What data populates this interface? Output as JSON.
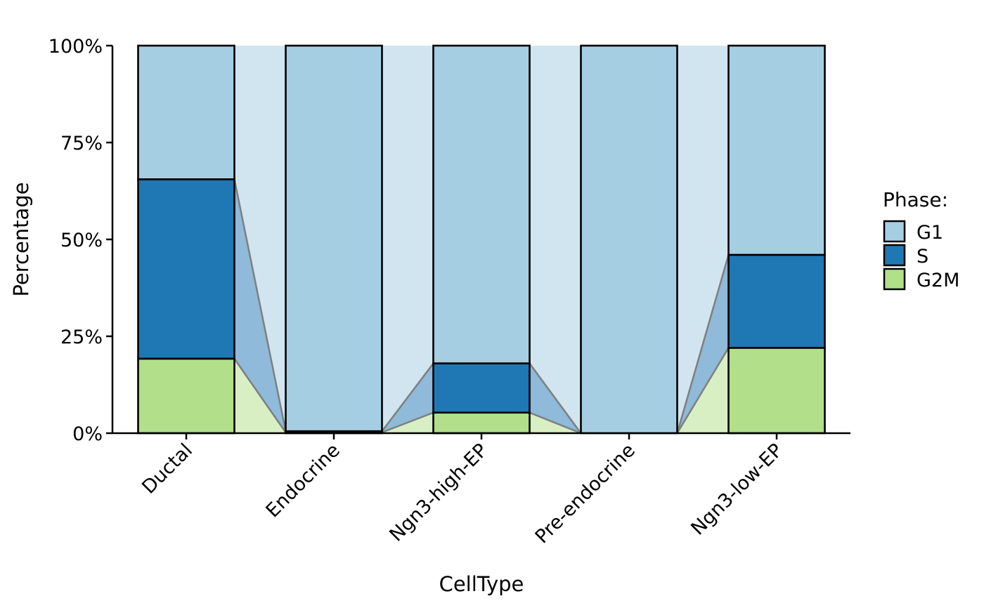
{
  "chart_data": {
    "type": "bar",
    "stacked": true,
    "normalized": true,
    "connectors": true,
    "categories": [
      "Ductal",
      "Endocrine",
      "Ngn3-high-EP",
      "Pre-endocrine",
      "Ngn3-low-EP"
    ],
    "series": [
      {
        "name": "G1",
        "values": [
          34.5,
          99.5,
          82.0,
          100.0,
          54.0
        ],
        "color": "#a6cee3",
        "connector_color": "#d1e5f0"
      },
      {
        "name": "S",
        "values": [
          46.3,
          0.3,
          12.7,
          0.0,
          24.0
        ],
        "color": "#1f78b4",
        "connector_color": "#8fbad9"
      },
      {
        "name": "G2M",
        "values": [
          19.2,
          0.2,
          5.3,
          0.0,
          22.0
        ],
        "color": "#b2df8a",
        "connector_color": "#d8efc4"
      }
    ],
    "xlabel": "CellType",
    "ylabel": "Percentage",
    "ylim": [
      0,
      100
    ],
    "yticks": [
      0,
      25,
      50,
      75,
      100
    ],
    "ytick_labels": [
      "0%",
      "25%",
      "50%",
      "75%",
      "100%"
    ],
    "legend": {
      "title": "Phase:",
      "position": "right"
    },
    "grid": false
  }
}
